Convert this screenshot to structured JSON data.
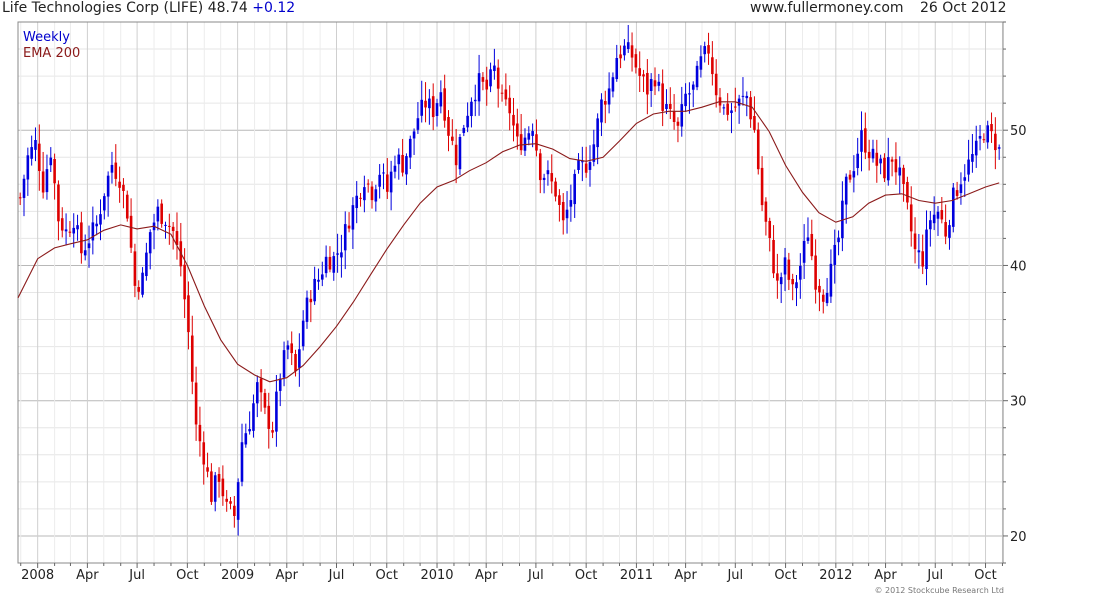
{
  "header": {
    "title": "Life Technologies Corp (LIFE) 48.74",
    "change": "+0.12",
    "source": "www.fullermoney.com",
    "date": "26 Oct 2012"
  },
  "copyright": "© 2012 Stockcube Research Ltd",
  "colors": {
    "up": "#0000dd",
    "down": "#dd0000",
    "ema": "#8b1a1a",
    "grid": "#d8d8d8"
  },
  "chart_data": {
    "type": "candlestick",
    "ylim": [
      18,
      58
    ],
    "y_ticks": [
      20,
      30,
      40,
      50
    ],
    "y_tick_labels": [
      "20",
      "30",
      "40",
      "50"
    ],
    "x_range": [
      "2007-11-26",
      "2012-11-02"
    ],
    "x_ticks": [
      {
        "date": "2008-01-01",
        "label": "2008"
      },
      {
        "date": "2008-04-01",
        "label": "Apr"
      },
      {
        "date": "2008-07-01",
        "label": "Jul"
      },
      {
        "date": "2008-10-01",
        "label": "Oct"
      },
      {
        "date": "2009-01-01",
        "label": "2009"
      },
      {
        "date": "2009-04-01",
        "label": "Apr"
      },
      {
        "date": "2009-07-01",
        "label": "Jul"
      },
      {
        "date": "2009-10-01",
        "label": "Oct"
      },
      {
        "date": "2010-01-01",
        "label": "2010"
      },
      {
        "date": "2010-04-01",
        "label": "Apr"
      },
      {
        "date": "2010-07-01",
        "label": "Jul"
      },
      {
        "date": "2010-10-01",
        "label": "Oct"
      },
      {
        "date": "2011-01-01",
        "label": "2011"
      },
      {
        "date": "2011-04-01",
        "label": "Apr"
      },
      {
        "date": "2011-07-01",
        "label": "Jul"
      },
      {
        "date": "2011-10-01",
        "label": "Oct"
      },
      {
        "date": "2012-01-01",
        "label": "2012"
      },
      {
        "date": "2012-04-01",
        "label": "Apr"
      },
      {
        "date": "2012-07-01",
        "label": "Jul"
      },
      {
        "date": "2012-10-01",
        "label": "Oct"
      }
    ],
    "legend": [
      {
        "name": "Weekly",
        "color": "#0000cc"
      },
      {
        "name": "EMA 200",
        "color": "#8b1a1a"
      }
    ],
    "legend_position": "top-left",
    "grid": true,
    "close_anchors": [
      [
        "2007-11-30",
        45.0
      ],
      [
        "2007-12-14",
        48.0
      ],
      [
        "2007-12-28",
        49.0
      ],
      [
        "2008-01-11",
        46.0
      ],
      [
        "2008-01-25",
        48.5
      ],
      [
        "2008-02-08",
        43.5
      ],
      [
        "2008-02-22",
        42.5
      ],
      [
        "2008-03-07",
        43.5
      ],
      [
        "2008-03-21",
        41.0
      ],
      [
        "2008-04-04",
        42.0
      ],
      [
        "2008-04-18",
        43.0
      ],
      [
        "2008-05-02",
        45.5
      ],
      [
        "2008-05-16",
        47.5
      ],
      [
        "2008-05-30",
        46.5
      ],
      [
        "2008-06-13",
        44.0
      ],
      [
        "2008-06-27",
        38.5
      ],
      [
        "2008-07-11",
        39.0
      ],
      [
        "2008-07-25",
        42.5
      ],
      [
        "2008-08-08",
        44.0
      ],
      [
        "2008-08-22",
        43.5
      ],
      [
        "2008-09-05",
        42.5
      ],
      [
        "2008-09-19",
        40.0
      ],
      [
        "2008-10-03",
        35.0
      ],
      [
        "2008-10-17",
        28.0
      ],
      [
        "2008-10-31",
        26.0
      ],
      [
        "2008-11-14",
        23.0
      ],
      [
        "2008-11-28",
        24.5
      ],
      [
        "2008-12-12",
        22.0
      ],
      [
        "2008-12-26",
        21.5
      ],
      [
        "2009-01-09",
        27.0
      ],
      [
        "2009-01-23",
        28.5
      ],
      [
        "2009-02-06",
        31.0
      ],
      [
        "2009-02-20",
        29.0
      ],
      [
        "2009-03-06",
        28.0
      ],
      [
        "2009-03-20",
        32.0
      ],
      [
        "2009-04-03",
        34.0
      ],
      [
        "2009-04-17",
        32.0
      ],
      [
        "2009-05-01",
        36.0
      ],
      [
        "2009-05-15",
        38.0
      ],
      [
        "2009-05-29",
        39.0
      ],
      [
        "2009-06-12",
        40.5
      ],
      [
        "2009-06-26",
        40.5
      ],
      [
        "2009-07-10",
        41.5
      ],
      [
        "2009-07-24",
        43.5
      ],
      [
        "2009-08-07",
        45.0
      ],
      [
        "2009-08-21",
        46.5
      ],
      [
        "2009-09-04",
        45.5
      ],
      [
        "2009-09-18",
        47.0
      ],
      [
        "2009-10-02",
        45.5
      ],
      [
        "2009-10-16",
        48.0
      ],
      [
        "2009-10-30",
        47.5
      ],
      [
        "2009-11-13",
        49.0
      ],
      [
        "2009-11-27",
        51.0
      ],
      [
        "2009-12-11",
        52.0
      ],
      [
        "2009-12-25",
        51.5
      ],
      [
        "2010-01-08",
        53.0
      ],
      [
        "2010-01-22",
        50.0
      ],
      [
        "2010-02-05",
        48.0
      ],
      [
        "2010-02-19",
        50.5
      ],
      [
        "2010-03-05",
        52.5
      ],
      [
        "2010-03-19",
        53.5
      ],
      [
        "2010-04-02",
        53.0
      ],
      [
        "2010-04-16",
        54.5
      ],
      [
        "2010-04-30",
        52.0
      ],
      [
        "2010-05-14",
        51.5
      ],
      [
        "2010-05-28",
        49.0
      ],
      [
        "2010-06-11",
        49.5
      ],
      [
        "2010-06-25",
        50.5
      ],
      [
        "2010-07-09",
        47.0
      ],
      [
        "2010-07-23",
        46.5
      ],
      [
        "2010-08-06",
        45.5
      ],
      [
        "2010-08-20",
        43.0
      ],
      [
        "2010-09-03",
        45.0
      ],
      [
        "2010-09-17",
        47.0
      ],
      [
        "2010-10-01",
        47.5
      ],
      [
        "2010-10-15",
        49.0
      ],
      [
        "2010-10-29",
        52.0
      ],
      [
        "2010-11-12",
        53.0
      ],
      [
        "2010-11-26",
        55.5
      ],
      [
        "2010-12-10",
        56.0
      ],
      [
        "2010-12-24",
        55.5
      ],
      [
        "2011-01-07",
        54.0
      ],
      [
        "2011-01-21",
        53.0
      ],
      [
        "2011-02-04",
        54.0
      ],
      [
        "2011-02-18",
        52.0
      ],
      [
        "2011-03-04",
        51.0
      ],
      [
        "2011-03-18",
        50.0
      ],
      [
        "2011-04-01",
        52.5
      ],
      [
        "2011-04-15",
        53.0
      ],
      [
        "2011-04-29",
        55.0
      ],
      [
        "2011-05-13",
        56.0
      ],
      [
        "2011-05-27",
        53.0
      ],
      [
        "2011-06-10",
        51.5
      ],
      [
        "2011-06-24",
        51.5
      ],
      [
        "2011-07-08",
        52.0
      ],
      [
        "2011-07-22",
        52.5
      ],
      [
        "2011-08-05",
        50.0
      ],
      [
        "2011-08-19",
        44.5
      ],
      [
        "2011-09-02",
        41.5
      ],
      [
        "2011-09-16",
        38.5
      ],
      [
        "2011-09-30",
        40.0
      ],
      [
        "2011-10-14",
        38.0
      ],
      [
        "2011-10-28",
        40.0
      ],
      [
        "2011-11-11",
        42.5
      ],
      [
        "2011-11-25",
        39.0
      ],
      [
        "2011-12-09",
        38.0
      ],
      [
        "2011-12-23",
        39.5
      ],
      [
        "2012-01-06",
        42.0
      ],
      [
        "2012-01-20",
        46.0
      ],
      [
        "2012-02-03",
        47.5
      ],
      [
        "2012-02-17",
        49.5
      ],
      [
        "2012-03-02",
        48.5
      ],
      [
        "2012-03-16",
        47.5
      ],
      [
        "2012-03-30",
        47.0
      ],
      [
        "2012-04-13",
        48.0
      ],
      [
        "2012-04-27",
        46.5
      ],
      [
        "2012-05-11",
        44.0
      ],
      [
        "2012-05-25",
        41.0
      ],
      [
        "2012-06-08",
        40.5
      ],
      [
        "2012-06-22",
        43.5
      ],
      [
        "2012-07-06",
        44.0
      ],
      [
        "2012-07-20",
        42.5
      ],
      [
        "2012-08-03",
        45.0
      ],
      [
        "2012-08-17",
        46.5
      ],
      [
        "2012-08-31",
        47.5
      ],
      [
        "2012-09-14",
        48.5
      ],
      [
        "2012-09-28",
        50.0
      ],
      [
        "2012-10-12",
        49.5
      ],
      [
        "2012-10-26",
        48.74
      ]
    ],
    "ema_200": [
      [
        "2007-11-26",
        37.6
      ],
      [
        "2008-01-01",
        40.5
      ],
      [
        "2008-02-01",
        41.3
      ],
      [
        "2008-03-01",
        41.6
      ],
      [
        "2008-04-01",
        41.9
      ],
      [
        "2008-05-01",
        42.6
      ],
      [
        "2008-06-01",
        43.0
      ],
      [
        "2008-07-01",
        42.7
      ],
      [
        "2008-08-01",
        42.9
      ],
      [
        "2008-09-01",
        42.3
      ],
      [
        "2008-10-01",
        40.0
      ],
      [
        "2008-11-01",
        37.0
      ],
      [
        "2008-12-01",
        34.5
      ],
      [
        "2009-01-01",
        32.7
      ],
      [
        "2009-02-01",
        31.9
      ],
      [
        "2009-03-01",
        31.4
      ],
      [
        "2009-04-01",
        31.7
      ],
      [
        "2009-05-01",
        32.6
      ],
      [
        "2009-06-01",
        34.0
      ],
      [
        "2009-07-01",
        35.5
      ],
      [
        "2009-08-01",
        37.3
      ],
      [
        "2009-09-01",
        39.3
      ],
      [
        "2009-10-01",
        41.2
      ],
      [
        "2009-11-01",
        43.0
      ],
      [
        "2009-12-01",
        44.6
      ],
      [
        "2010-01-01",
        45.8
      ],
      [
        "2010-02-01",
        46.3
      ],
      [
        "2010-03-01",
        47.0
      ],
      [
        "2010-04-01",
        47.6
      ],
      [
        "2010-05-01",
        48.4
      ],
      [
        "2010-06-01",
        48.9
      ],
      [
        "2010-07-01",
        49.0
      ],
      [
        "2010-08-01",
        48.6
      ],
      [
        "2010-09-01",
        47.9
      ],
      [
        "2010-10-01",
        47.7
      ],
      [
        "2010-11-01",
        48.0
      ],
      [
        "2010-12-01",
        49.2
      ],
      [
        "2011-01-01",
        50.5
      ],
      [
        "2011-02-01",
        51.2
      ],
      [
        "2011-03-01",
        51.4
      ],
      [
        "2011-04-01",
        51.4
      ],
      [
        "2011-05-01",
        51.7
      ],
      [
        "2011-06-01",
        52.1
      ],
      [
        "2011-07-01",
        52.1
      ],
      [
        "2011-08-01",
        51.7
      ],
      [
        "2011-09-01",
        49.9
      ],
      [
        "2011-10-01",
        47.4
      ],
      [
        "2011-11-01",
        45.4
      ],
      [
        "2011-12-01",
        43.9
      ],
      [
        "2012-01-01",
        43.2
      ],
      [
        "2012-02-01",
        43.6
      ],
      [
        "2012-03-01",
        44.6
      ],
      [
        "2012-04-01",
        45.2
      ],
      [
        "2012-05-01",
        45.3
      ],
      [
        "2012-06-01",
        44.8
      ],
      [
        "2012-07-01",
        44.6
      ],
      [
        "2012-08-01",
        44.8
      ],
      [
        "2012-09-01",
        45.3
      ],
      [
        "2012-10-01",
        45.8
      ],
      [
        "2012-10-26",
        46.1
      ]
    ]
  }
}
